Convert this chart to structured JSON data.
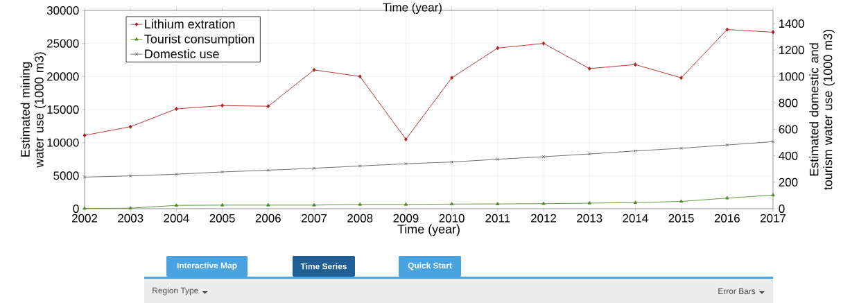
{
  "chart_data": {
    "type": "line",
    "xlabel": "Time (year)",
    "ylabel": "Estimated mining water use (1000 m3)",
    "y2label": "Estimated domestic and tourism water use (1000 m3)",
    "x": [
      2002,
      2003,
      2004,
      2005,
      2006,
      2007,
      2008,
      2009,
      2010,
      2011,
      2012,
      2013,
      2014,
      2015,
      2016,
      2017
    ],
    "series": [
      {
        "name": "Lithium extration",
        "color": "#b22222",
        "marker": "diamond",
        "values": [
          11100,
          12400,
          15100,
          15600,
          15500,
          21000,
          20000,
          10500,
          19800,
          24300,
          25000,
          21200,
          21800,
          19800,
          27100,
          26700
        ]
      },
      {
        "name": "Tourist consumption",
        "color": "#4f8a2a",
        "marker": "triangle",
        "axis": "y2",
        "values": [
          2,
          4,
          25,
          27,
          27,
          27,
          32,
          32,
          35,
          36,
          38,
          42,
          46,
          55,
          80,
          103
        ]
      },
      {
        "name": "Domestic use",
        "color": "#606060",
        "marker": "cross",
        "axis": "y2",
        "values": [
          239,
          248,
          261,
          278,
          291,
          306,
          323,
          340,
          353,
          374,
          393,
          414,
          437,
          457,
          482,
          507
        ]
      }
    ],
    "xlim": [
      2002,
      2017
    ],
    "xticks": [
      2002,
      2003,
      2004,
      2005,
      2006,
      2007,
      2008,
      2009,
      2010,
      2011,
      2012,
      2013,
      2014,
      2015,
      2016,
      2017
    ],
    "ylim": [
      0,
      30000
    ],
    "yticks": [
      0,
      5000,
      10000,
      15000,
      20000,
      25000,
      30000
    ],
    "y2lim": [
      0,
      1500
    ],
    "y2ticks": [
      0,
      200,
      400,
      600,
      800,
      1000,
      1200,
      1400
    ],
    "grid": true,
    "legend": "top left",
    "line_style": "solid",
    "annotations": [
      "Time (year)",
      "Interactive Map",
      "Time Series",
      "Quick Start",
      "Region Type",
      "Error Bars"
    ]
  }
}
